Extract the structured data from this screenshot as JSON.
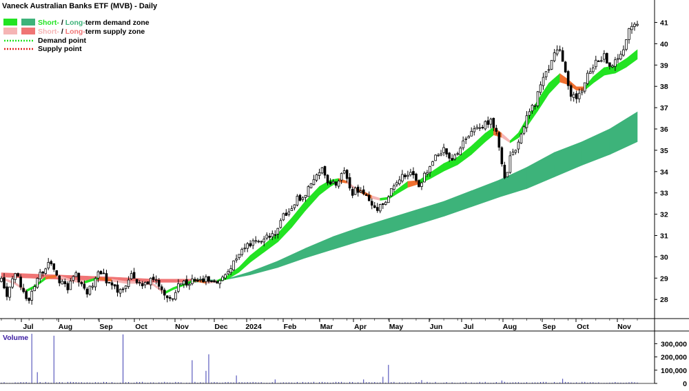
{
  "chart_data": {
    "type": "candlestick",
    "title": "Vaneck Australian Banks ETF (MVB) - Daily",
    "legend": [
      {
        "label_a": "Short-",
        "sep": " / ",
        "label_b": "Long-",
        "rest": "term demand zone",
        "color_a": "#22e322",
        "color_b": "#3db37a"
      },
      {
        "label_a": "Short-",
        "sep": " / ",
        "label_b": "Long-",
        "rest": "term supply zone",
        "color_a": "#f5b5b5",
        "color_b": "#f07575"
      },
      {
        "label": "Demand point",
        "color": "#22e322",
        "dotted": true
      },
      {
        "label": "Supply point",
        "color": "#e02020",
        "dotted": true
      }
    ],
    "x_labels": [
      "Jul",
      "Aug",
      "Sep",
      "Oct",
      "Nov",
      "Dec",
      "2024",
      "Feb",
      "Mar",
      "Apr",
      "May",
      "Jun",
      "Jul",
      "Aug",
      "Sep",
      "Oct",
      "Nov"
    ],
    "y_ticks": [
      28,
      29,
      30,
      31,
      32,
      33,
      34,
      35,
      36,
      37,
      38,
      39,
      40,
      41
    ],
    "ylim": [
      27.1,
      41.6
    ],
    "grid": false,
    "legend_position": "top-left",
    "price_anchors": [
      [
        0,
        28.9
      ],
      [
        2,
        28.3
      ],
      [
        5,
        29.3
      ],
      [
        7,
        28.6
      ],
      [
        10,
        28.0
      ],
      [
        14,
        29.2
      ],
      [
        17,
        29.8
      ],
      [
        20,
        29.0
      ],
      [
        24,
        28.6
      ],
      [
        27,
        29.1
      ],
      [
        31,
        28.2
      ],
      [
        35,
        29.3
      ],
      [
        39,
        28.8
      ],
      [
        43,
        28.3
      ],
      [
        47,
        29.1
      ],
      [
        51,
        28.6
      ],
      [
        55,
        29.0
      ],
      [
        58,
        28.4
      ],
      [
        61,
        28.0
      ],
      [
        64,
        28.6
      ],
      [
        68,
        28.8
      ],
      [
        71,
        28.9
      ],
      [
        74,
        29.0
      ],
      [
        77,
        28.7
      ],
      [
        80,
        28.9
      ],
      [
        83,
        29.5
      ],
      [
        87,
        30.3
      ],
      [
        91,
        30.6
      ],
      [
        95,
        30.9
      ],
      [
        99,
        31.2
      ],
      [
        103,
        32.1
      ],
      [
        106,
        32.6
      ],
      [
        110,
        33.0
      ],
      [
        113,
        33.5
      ],
      [
        116,
        34.3
      ],
      [
        118,
        33.3
      ],
      [
        121,
        33.5
      ],
      [
        124,
        33.9
      ],
      [
        127,
        33.0
      ],
      [
        130,
        33.2
      ],
      [
        133,
        32.6
      ],
      [
        136,
        32.3
      ],
      [
        139,
        32.7
      ],
      [
        142,
        33.4
      ],
      [
        145,
        33.8
      ],
      [
        148,
        34.0
      ],
      [
        151,
        33.3
      ],
      [
        154,
        34.0
      ],
      [
        157,
        34.6
      ],
      [
        160,
        35.0
      ],
      [
        163,
        34.6
      ],
      [
        167,
        35.3
      ],
      [
        171,
        36.0
      ],
      [
        174,
        36.2
      ],
      [
        177,
        36.3
      ],
      [
        179,
        36.0
      ],
      [
        181,
        34.3
      ],
      [
        182,
        33.6
      ],
      [
        184,
        34.6
      ],
      [
        187,
        35.4
      ],
      [
        190,
        36.6
      ],
      [
        193,
        37.2
      ],
      [
        196,
        38.4
      ],
      [
        199,
        39.2
      ],
      [
        202,
        39.8
      ],
      [
        204,
        38.8
      ],
      [
        206,
        37.6
      ],
      [
        208,
        37.3
      ],
      [
        210,
        37.9
      ],
      [
        212,
        38.6
      ],
      [
        215,
        39.1
      ],
      [
        218,
        39.4
      ],
      [
        221,
        38.9
      ],
      [
        224,
        39.5
      ],
      [
        226,
        40.2
      ],
      [
        228,
        40.9
      ],
      [
        230,
        40.8
      ]
    ],
    "short_zone": [
      {
        "i": 0,
        "mid": 29.0,
        "w": 0.05,
        "t": "s"
      },
      {
        "i": 5,
        "mid": 28.75,
        "w": 0.05,
        "t": "s"
      },
      {
        "i": 9,
        "mid": 28.4,
        "w": 0.05,
        "t": "s"
      },
      {
        "i": 12,
        "mid": 28.6,
        "w": 0.05,
        "t": "d"
      },
      {
        "i": 16,
        "mid": 29.0,
        "w": 0.06,
        "t": "d"
      },
      {
        "i": 20,
        "mid": 29.1,
        "w": 0.05,
        "t": "s"
      },
      {
        "i": 25,
        "mid": 28.9,
        "w": 0.05,
        "t": "s"
      },
      {
        "i": 30,
        "mid": 28.8,
        "w": 0.05,
        "t": "s"
      },
      {
        "i": 35,
        "mid": 29.0,
        "w": 0.05,
        "t": "d"
      },
      {
        "i": 40,
        "mid": 28.9,
        "w": 0.05,
        "t": "s"
      },
      {
        "i": 45,
        "mid": 28.8,
        "w": 0.05,
        "t": "s"
      },
      {
        "i": 50,
        "mid": 28.8,
        "w": 0.05,
        "t": "s"
      },
      {
        "i": 55,
        "mid": 28.7,
        "w": 0.05,
        "t": "s"
      },
      {
        "i": 59,
        "mid": 28.3,
        "w": 0.05,
        "t": "s"
      },
      {
        "i": 62,
        "mid": 28.5,
        "w": 0.05,
        "t": "d"
      },
      {
        "i": 66,
        "mid": 28.7,
        "w": 0.05,
        "t": "d"
      },
      {
        "i": 70,
        "mid": 28.9,
        "w": 0.05,
        "t": "d"
      },
      {
        "i": 74,
        "mid": 28.8,
        "w": 0.05,
        "t": "s"
      },
      {
        "i": 78,
        "mid": 28.85,
        "w": 0.05,
        "t": "s"
      },
      {
        "i": 82,
        "mid": 29.05,
        "w": 0.08,
        "t": "d"
      },
      {
        "i": 86,
        "mid": 29.4,
        "w": 0.12,
        "t": "d"
      },
      {
        "i": 90,
        "mid": 29.9,
        "w": 0.16,
        "t": "d"
      },
      {
        "i": 95,
        "mid": 30.4,
        "w": 0.18,
        "t": "d"
      },
      {
        "i": 100,
        "mid": 30.9,
        "w": 0.2,
        "t": "d"
      },
      {
        "i": 105,
        "mid": 31.6,
        "w": 0.22,
        "t": "d"
      },
      {
        "i": 110,
        "mid": 32.4,
        "w": 0.22,
        "t": "d"
      },
      {
        "i": 115,
        "mid": 33.1,
        "w": 0.2,
        "t": "d"
      },
      {
        "i": 119,
        "mid": 33.45,
        "w": 0.15,
        "t": "d"
      },
      {
        "i": 122,
        "mid": 33.6,
        "w": 0.08,
        "t": "d"
      },
      {
        "i": 125,
        "mid": 33.5,
        "w": 0.05,
        "t": "s"
      },
      {
        "i": 128,
        "mid": 33.2,
        "w": 0.05,
        "t": "s"
      },
      {
        "i": 131,
        "mid": 33.0,
        "w": 0.07,
        "t": "s"
      },
      {
        "i": 134,
        "mid": 32.8,
        "w": 0.07,
        "t": "s"
      },
      {
        "i": 137,
        "mid": 32.7,
        "w": 0.05,
        "t": "s"
      },
      {
        "i": 140,
        "mid": 32.75,
        "w": 0.05,
        "t": "d"
      },
      {
        "i": 143,
        "mid": 33.05,
        "w": 0.1,
        "t": "d"
      },
      {
        "i": 147,
        "mid": 33.4,
        "w": 0.14,
        "t": "d"
      },
      {
        "i": 151,
        "mid": 33.5,
        "w": 0.08,
        "t": "s"
      },
      {
        "i": 155,
        "mid": 33.8,
        "w": 0.14,
        "t": "d"
      },
      {
        "i": 160,
        "mid": 34.2,
        "w": 0.18,
        "t": "d"
      },
      {
        "i": 165,
        "mid": 34.5,
        "w": 0.18,
        "t": "d"
      },
      {
        "i": 170,
        "mid": 35.0,
        "w": 0.2,
        "t": "d"
      },
      {
        "i": 175,
        "mid": 35.6,
        "w": 0.2,
        "t": "d"
      },
      {
        "i": 178,
        "mid": 35.9,
        "w": 0.18,
        "t": "d"
      },
      {
        "i": 181,
        "mid": 35.7,
        "w": 0.1,
        "t": "s"
      },
      {
        "i": 184,
        "mid": 35.4,
        "w": 0.05,
        "t": "s"
      },
      {
        "i": 187,
        "mid": 35.7,
        "w": 0.12,
        "t": "d"
      },
      {
        "i": 190,
        "mid": 36.3,
        "w": 0.2,
        "t": "d"
      },
      {
        "i": 194,
        "mid": 37.1,
        "w": 0.25,
        "t": "d"
      },
      {
        "i": 198,
        "mid": 37.9,
        "w": 0.25,
        "t": "d"
      },
      {
        "i": 202,
        "mid": 38.4,
        "w": 0.2,
        "t": "d"
      },
      {
        "i": 205,
        "mid": 38.2,
        "w": 0.12,
        "t": "s"
      },
      {
        "i": 208,
        "mid": 37.9,
        "w": 0.08,
        "t": "s"
      },
      {
        "i": 211,
        "mid": 37.9,
        "w": 0.08,
        "t": "s"
      },
      {
        "i": 214,
        "mid": 38.3,
        "w": 0.15,
        "t": "d"
      },
      {
        "i": 218,
        "mid": 38.7,
        "w": 0.18,
        "t": "d"
      },
      {
        "i": 222,
        "mid": 38.8,
        "w": 0.18,
        "t": "d"
      },
      {
        "i": 226,
        "mid": 39.1,
        "w": 0.2,
        "t": "d"
      },
      {
        "i": 230,
        "mid": 39.5,
        "w": 0.22,
        "t": "d"
      }
    ],
    "long_zone": [
      {
        "i": 0,
        "a": 29.25,
        "b": 29.05,
        "t": "s"
      },
      {
        "i": 20,
        "a": 29.15,
        "b": 28.95,
        "t": "s"
      },
      {
        "i": 40,
        "a": 29.05,
        "b": 28.85,
        "t": "s"
      },
      {
        "i": 55,
        "a": 28.95,
        "b": 28.8,
        "t": "s"
      },
      {
        "i": 70,
        "a": 28.95,
        "b": 28.8,
        "t": "s"
      },
      {
        "i": 80,
        "a": 28.9,
        "b": 28.9,
        "t": "d"
      },
      {
        "i": 90,
        "a": 29.3,
        "b": 29.15,
        "t": "d"
      },
      {
        "i": 100,
        "a": 29.8,
        "b": 29.5,
        "t": "d"
      },
      {
        "i": 110,
        "a": 30.4,
        "b": 29.95,
        "t": "d"
      },
      {
        "i": 120,
        "a": 30.95,
        "b": 30.35,
        "t": "d"
      },
      {
        "i": 130,
        "a": 31.4,
        "b": 30.75,
        "t": "d"
      },
      {
        "i": 140,
        "a": 31.8,
        "b": 31.1,
        "t": "d"
      },
      {
        "i": 150,
        "a": 32.2,
        "b": 31.5,
        "t": "d"
      },
      {
        "i": 160,
        "a": 32.6,
        "b": 31.9,
        "t": "d"
      },
      {
        "i": 170,
        "a": 33.1,
        "b": 32.35,
        "t": "d"
      },
      {
        "i": 180,
        "a": 33.6,
        "b": 32.8,
        "t": "d"
      },
      {
        "i": 190,
        "a": 34.2,
        "b": 33.2,
        "t": "d"
      },
      {
        "i": 200,
        "a": 34.9,
        "b": 33.75,
        "t": "d"
      },
      {
        "i": 210,
        "a": 35.4,
        "b": 34.3,
        "t": "d"
      },
      {
        "i": 220,
        "a": 36.0,
        "b": 34.8,
        "t": "d"
      },
      {
        "i": 230,
        "a": 36.8,
        "b": 35.4,
        "t": "d"
      }
    ],
    "volume": {
      "title": "Volume",
      "y_ticks": [
        0,
        100000,
        200000,
        300000
      ],
      "y_tick_labels": [
        "0",
        "100,000",
        "200,000",
        "300,000"
      ],
      "ylim": [
        0,
        380000
      ],
      "spikes": [
        [
          11,
          375000
        ],
        [
          13,
          85000
        ],
        [
          19,
          360000
        ],
        [
          44,
          370000
        ],
        [
          69,
          175000
        ],
        [
          74,
          95000
        ],
        [
          75,
          220000
        ],
        [
          85,
          60000
        ],
        [
          138,
          50000
        ],
        [
          140,
          140000
        ],
        [
          152,
          25000
        ],
        [
          131,
          30000
        ],
        [
          181,
          22000
        ],
        [
          203,
          35000
        ],
        [
          99,
          30000
        ]
      ]
    }
  }
}
